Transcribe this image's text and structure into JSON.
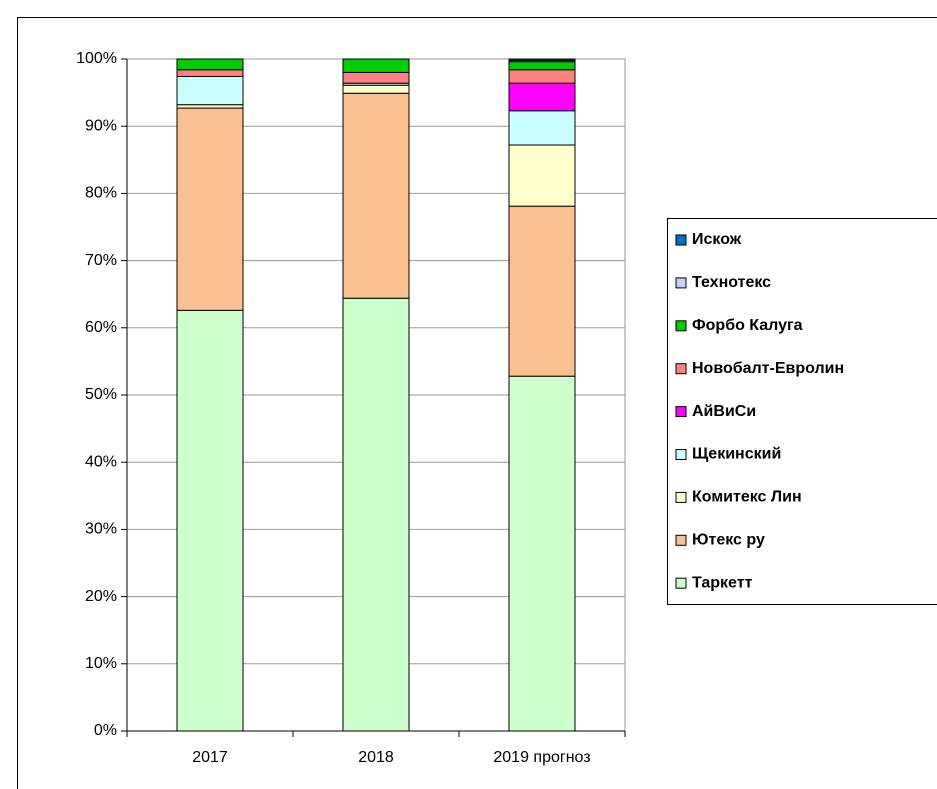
{
  "chart_data": {
    "type": "stacked_bar",
    "categories": [
      "2017",
      "2018",
      "2019 прогноз"
    ],
    "series": [
      {
        "name": "Таркетт",
        "color": "#ccffcc",
        "values": [
          62.6,
          64.4,
          52.8
        ]
      },
      {
        "name": "Ютекс ру",
        "color": "#fac090",
        "values": [
          30.1,
          30.5,
          25.3
        ]
      },
      {
        "name": "Комитекс Лин",
        "color": "#ffffcc",
        "values": [
          0.5,
          1.2,
          9.1
        ]
      },
      {
        "name": "Щекинский",
        "color": "#ccffff",
        "values": [
          4.2,
          0.3,
          5.1
        ]
      },
      {
        "name": "АйВиСи",
        "color": "#ff00ff",
        "values": [
          0,
          0,
          4.1
        ]
      },
      {
        "name": "Новобалт-Евролин",
        "color": "#ff8080",
        "values": [
          1.0,
          1.6,
          2.0
        ]
      },
      {
        "name": "Форбо Калуга",
        "color": "#00cc00",
        "values": [
          1.6,
          2.0,
          1.2
        ]
      },
      {
        "name": "Технотекс",
        "color": "#ccccff",
        "values": [
          0,
          0,
          0.2
        ]
      },
      {
        "name": "Искож",
        "color": "#0070c0",
        "values": [
          0,
          0,
          0.2
        ]
      }
    ],
    "ylim": [
      0,
      100
    ],
    "yticks": [
      {
        "value": 0,
        "label": "0%"
      },
      {
        "value": 10,
        "label": "10%"
      },
      {
        "value": 20,
        "label": "20%"
      },
      {
        "value": 30,
        "label": "30%"
      },
      {
        "value": 40,
        "label": "40%"
      },
      {
        "value": 50,
        "label": "50%"
      },
      {
        "value": 60,
        "label": "60%"
      },
      {
        "value": 70,
        "label": "70%"
      },
      {
        "value": 80,
        "label": "80%"
      },
      {
        "value": 90,
        "label": "90%"
      },
      {
        "value": 100,
        "label": "100%"
      }
    ],
    "grid": true,
    "legend": "right"
  }
}
